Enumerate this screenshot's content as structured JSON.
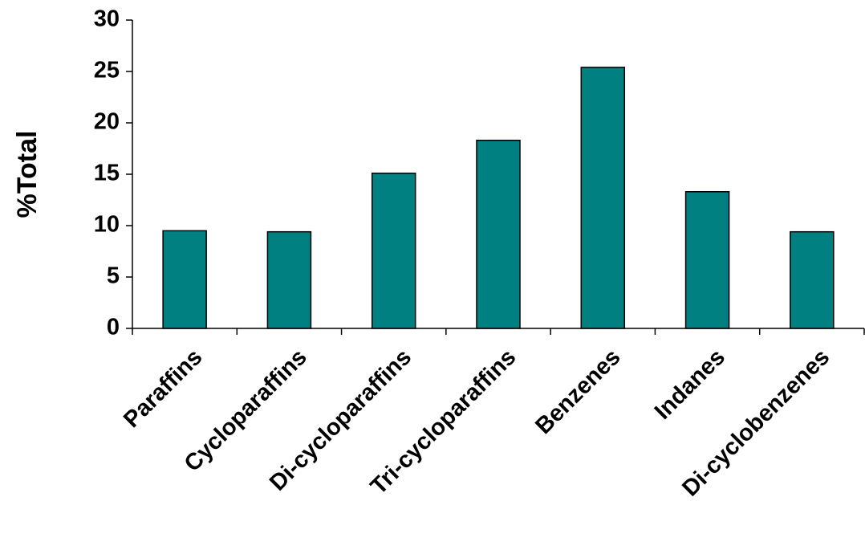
{
  "chart_data": {
    "type": "bar",
    "y_label": "%Total",
    "categories": [
      "Paraffins",
      "Cycloparaffins",
      "Di-cycloparaffins",
      "Tri-cycloparaffins",
      "Benzenes",
      "Indanes",
      "Di-cyclobenzenes"
    ],
    "values": [
      9.5,
      9.4,
      15.1,
      18.3,
      25.4,
      13.3,
      9.4
    ],
    "color": "#008080",
    "ylim": [
      0,
      30
    ],
    "yticks": [
      0,
      5,
      10,
      15,
      20,
      25,
      30
    ],
    "grid": false
  }
}
